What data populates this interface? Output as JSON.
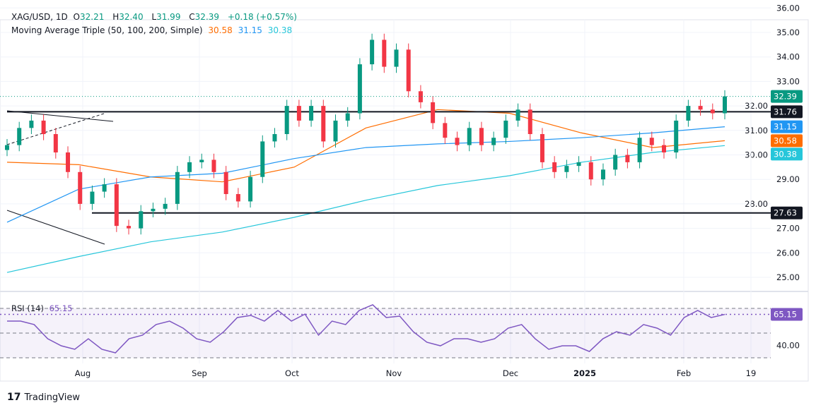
{
  "header": {
    "symbol": "XAG/USD, 1D",
    "open": "32.21",
    "high": "32.40",
    "low": "31.99",
    "close": "32.39",
    "change": "+0.18 (+0.57%)",
    "o_label": "O",
    "h_label": "H",
    "l_label": "L",
    "c_label": "C",
    "ma_label": "Moving Average Triple (50, 100, 200, Simple)",
    "ma50": "30.58",
    "ma100": "31.15",
    "ma200": "30.38"
  },
  "rsi_label": "RSI (14)",
  "rsi_value": "65.15",
  "brand": "TradingView",
  "colors": {
    "up": "#089981",
    "down": "#f23645",
    "ma50": "#ff6d00",
    "ma100": "#2196f3",
    "ma200": "#26c6da",
    "rsi": "#7e57c2",
    "level": "#131722"
  },
  "chart_data": {
    "type": "candlestick",
    "price_axis": {
      "ticks": [
        "36.00",
        "35.00",
        "34.00",
        "33.00",
        "32.00",
        "31.00",
        "30.00",
        "29.00",
        "28.00",
        "27.00",
        "26.00",
        "25.00"
      ],
      "ylim": [
        24.5,
        36
      ]
    },
    "time_axis": [
      "Aug",
      "Sep",
      "Oct",
      "Nov",
      "Dec",
      "2025",
      "Feb",
      "19"
    ],
    "closes": [
      30.4,
      31.1,
      31.4,
      30.85,
      30.1,
      29.3,
      28.0,
      28.5,
      28.8,
      27.1,
      27.0,
      27.7,
      27.8,
      28.0,
      29.3,
      29.7,
      29.8,
      29.3,
      28.4,
      28.1,
      29.1,
      30.55,
      30.85,
      32.0,
      31.4,
      32.0,
      30.55,
      31.4,
      31.7,
      33.7,
      34.7,
      33.6,
      34.3,
      32.6,
      32.15,
      31.3,
      30.7,
      30.4,
      31.1,
      30.4,
      30.7,
      31.4,
      31.85,
      30.85,
      29.7,
      29.3,
      29.55,
      29.7,
      29.0,
      29.4,
      30.0,
      29.7,
      30.7,
      30.4,
      30.1,
      31.4,
      32.0,
      31.85,
      31.7,
      32.39
    ],
    "moving_averages": [
      {
        "name": "50",
        "values": [
          29.7,
          29.6,
          29.1,
          28.9,
          29.5,
          31.1,
          31.85,
          31.7,
          30.9,
          30.3,
          30.58
        ]
      },
      {
        "name": "100",
        "values": [
          27.25,
          28.6,
          29.1,
          29.25,
          29.85,
          30.3,
          30.45,
          30.55,
          30.7,
          30.9,
          31.15
        ]
      },
      {
        "name": "200",
        "values": [
          25.2,
          25.85,
          26.45,
          26.85,
          27.45,
          28.15,
          28.75,
          29.15,
          29.7,
          30.1,
          30.38
        ]
      }
    ],
    "levels": [
      {
        "value": 31.76,
        "label": "31.76"
      },
      {
        "value": 27.63,
        "label": "27.63"
      }
    ],
    "last_price": {
      "value": 32.39,
      "label": "32.39"
    },
    "rsi": {
      "values": [
        59.7,
        59.7,
        56.9,
        45.4,
        39.7,
        36.9,
        45.4,
        36.9,
        34,
        45.4,
        48.3,
        56.9,
        59.7,
        54,
        45.4,
        42.6,
        51.1,
        62.6,
        64.3,
        59.7,
        68.3,
        59.7,
        65.4,
        48.3,
        59.7,
        56.9,
        68.3,
        72.9,
        62.6,
        63.7,
        51.1,
        42.6,
        39.7,
        45.4,
        45.4,
        42.6,
        45.4,
        54,
        56.9,
        45.4,
        36.9,
        39.7,
        39.7,
        35.1,
        45.4,
        51.1,
        48.3,
        56.9,
        54,
        48.3,
        62.6,
        68.3,
        62.6,
        65.15
      ],
      "bands": [
        30,
        70
      ],
      "ticks": [
        "40.00"
      ],
      "ylim": [
        25,
        80
      ]
    }
  }
}
